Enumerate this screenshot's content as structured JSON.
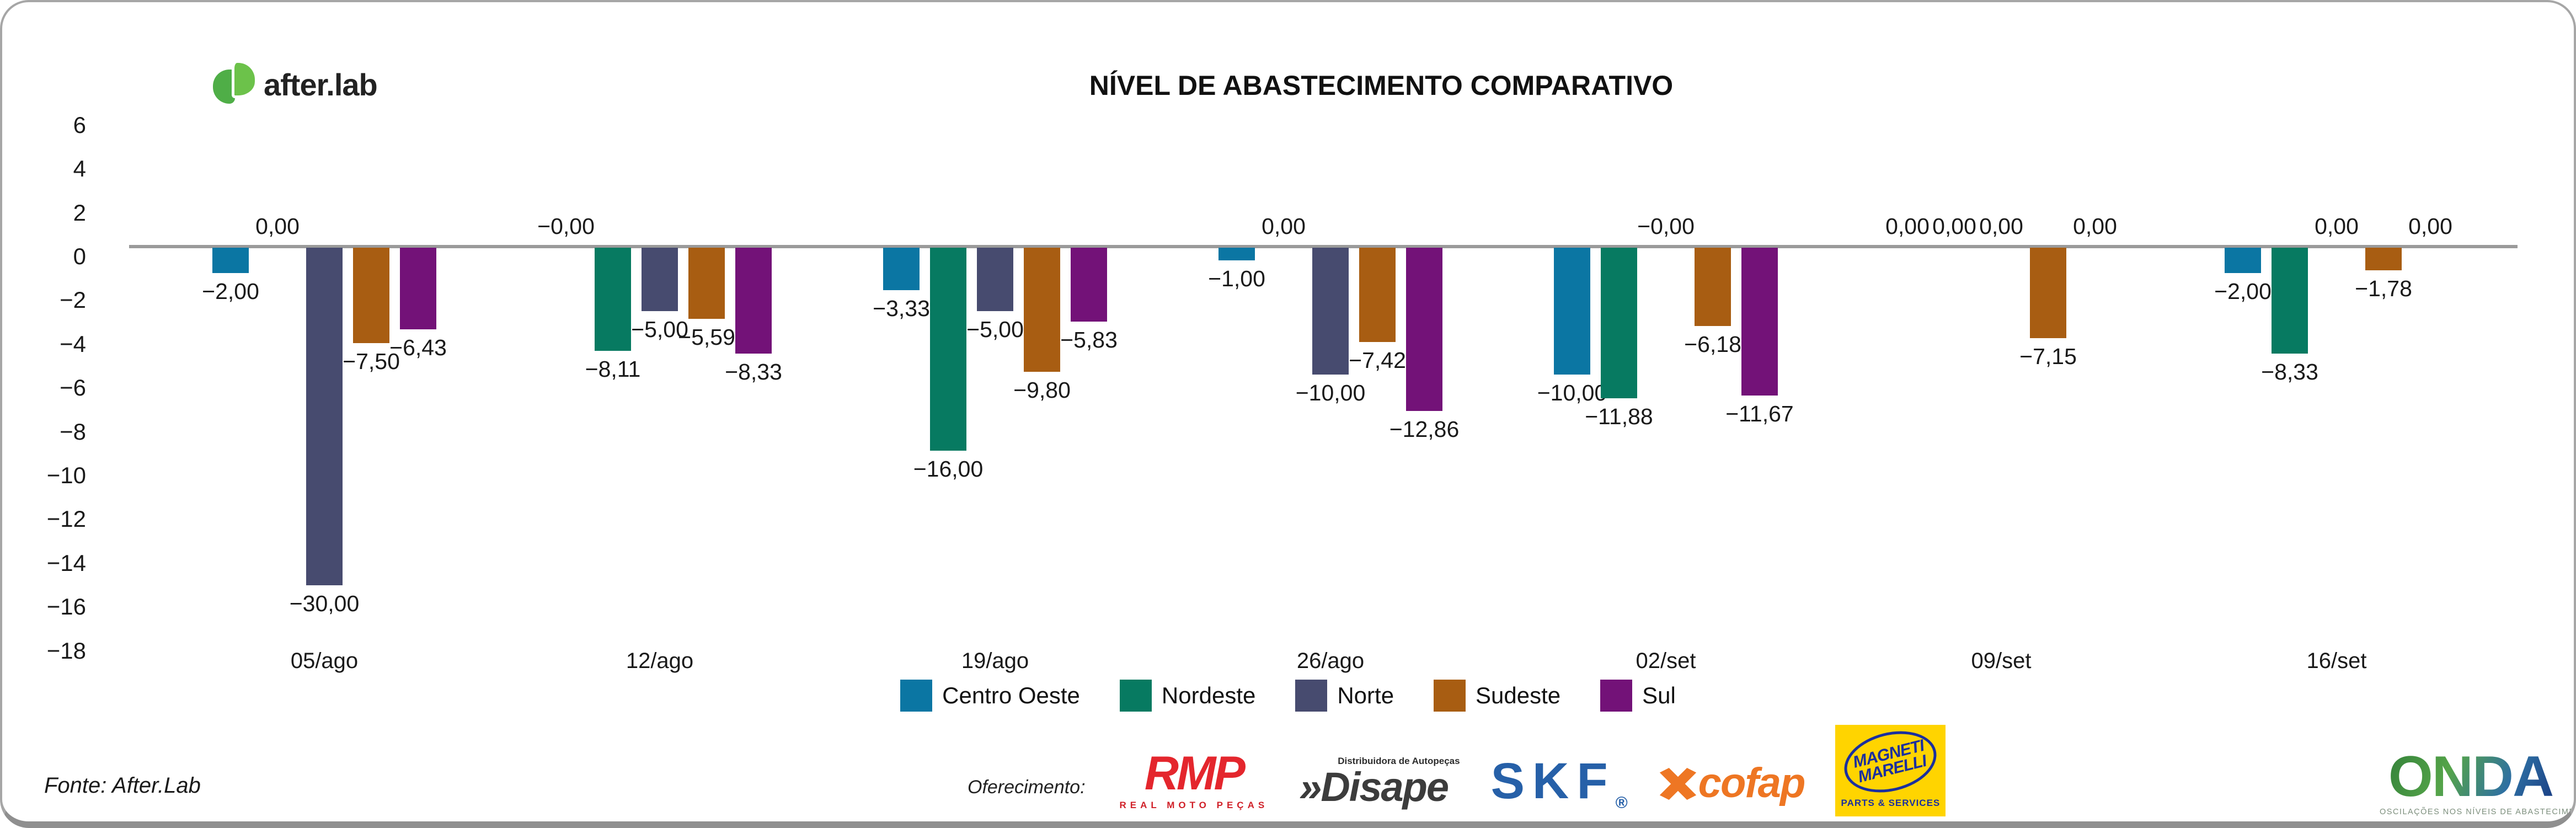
{
  "header": {
    "logo_text": "after.lab",
    "title": "NÍVEL DE ABASTECIMENTO COMPARATIVO"
  },
  "chart_data": {
    "type": "bar",
    "title": "NÍVEL DE ABASTECIMENTO COMPARATIVO",
    "categories": [
      "05/ago",
      "12/ago",
      "19/ago",
      "26/ago",
      "02/set",
      "09/set",
      "16/set"
    ],
    "series": [
      {
        "name": "Centro Oeste",
        "color": "#0b76a3",
        "values": [
          -2.0,
          -0.0,
          -3.33,
          -1.0,
          -10.0,
          0.0,
          -2.0
        ],
        "labels": [
          "−2,00",
          "−0,00",
          "−3,33",
          "−1,00",
          "−10,00",
          "0,00",
          "−2,00"
        ]
      },
      {
        "name": "Nordeste",
        "color": "#077a61",
        "values": [
          0.0,
          -8.11,
          -16.0,
          0.0,
          -11.88,
          0.0,
          -8.33
        ],
        "labels": [
          "0,00",
          "−8,11",
          "−16,00",
          "0,00",
          "−11,88",
          "0,00",
          "−8,33"
        ]
      },
      {
        "name": "Norte",
        "color": "#474b6f",
        "values": [
          -30.0,
          -5.0,
          -5.0,
          -10.0,
          -0.0,
          0.0,
          0.0
        ],
        "labels": [
          "−30,00",
          "−5,00",
          "−5,00",
          "−10,00",
          "−0,00",
          "0,00",
          "0,00"
        ]
      },
      {
        "name": "Sudeste",
        "color": "#a85d12",
        "values": [
          -7.5,
          -5.59,
          -9.8,
          -7.42,
          -6.18,
          -7.15,
          -1.78
        ],
        "labels": [
          "−7,50",
          "−5,59",
          "−9,80",
          "−7,42",
          "−6,18",
          "−7,15",
          "−1,78"
        ]
      },
      {
        "name": "Sul",
        "color": "#731278",
        "values": [
          -6.43,
          -8.33,
          -5.83,
          -12.86,
          -11.67,
          0.0,
          0.0
        ],
        "labels": [
          "−6,43",
          "−8,33",
          "−5,83",
          "−12,86",
          "−11,67",
          "0,00",
          "0,00"
        ]
      }
    ],
    "y_ticks": [
      6,
      4,
      2,
      0,
      -2,
      -4,
      -6,
      -8,
      -10,
      -12,
      -14,
      -16,
      -18
    ],
    "y_tick_labels": [
      "6",
      "4",
      "2",
      "0",
      "−2",
      "−4",
      "−6",
      "−8",
      "−10",
      "−12",
      "−14",
      "−16",
      "−18"
    ],
    "ylim": [
      -18,
      6
    ],
    "xlabel": "",
    "ylabel": "",
    "grid": false,
    "legend_position": "bottom",
    "note": "bars hang from zero baseline; Norte 05/ago (−30,00) is clipped at plot bottom"
  },
  "legend": [
    "Centro Oeste",
    "Nordeste",
    "Norte",
    "Sudeste",
    "Sul"
  ],
  "footer": {
    "source": "Fonte: After.Lab",
    "sponsors_label": "Oferecimento:",
    "sponsors": {
      "rmp": {
        "name": "RMP",
        "sub": "REAL MOTO PEÇAS"
      },
      "disape": {
        "prefix": "»",
        "name": "Disape",
        "sub": "Distribuidora de Autopeças"
      },
      "skf": {
        "name": "SKF",
        "reg": "®"
      },
      "cofap": {
        "name": "cofap"
      },
      "magneti_marelli": {
        "line1": "MAGNETI",
        "line2": "MARELLI",
        "sub": "PARTS & SERVICES"
      }
    },
    "onda": {
      "name": "ONDA",
      "tagline": "OSCILAÇÕES NOS NÍVEIS DE ABASTECIMENTO E PREÇOS"
    }
  }
}
